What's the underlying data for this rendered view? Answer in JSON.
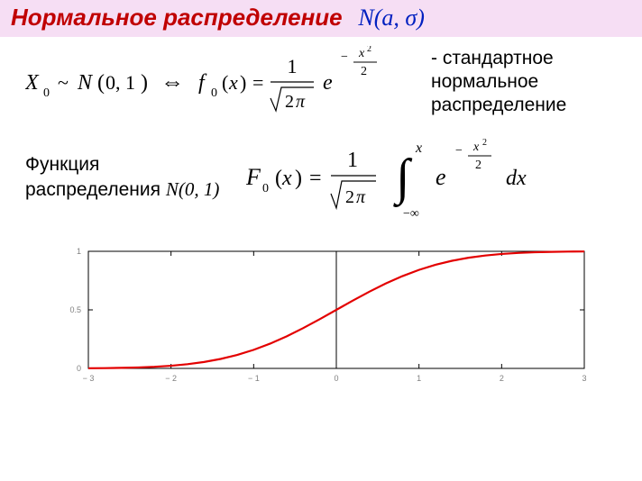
{
  "header": {
    "bg_color": "#f6def4",
    "title_color": "#c00000",
    "title": "Нормальное распределение",
    "n_label_color": "#0020c0",
    "n_label": "N(a, σ)"
  },
  "row1": {
    "annotation_l1": "- стандартное",
    "annotation_l2": "нормальное",
    "annotation_l3": "распределение"
  },
  "row2": {
    "label_l1": "Функция",
    "label_l2_a": "распределения ",
    "label_l2_b": "N(0, 1)"
  },
  "chart": {
    "type": "line",
    "xlim": [
      -3,
      3
    ],
    "ylim": [
      0,
      1
    ],
    "xticks": [
      -3,
      -2,
      -1,
      0,
      1,
      2,
      3
    ],
    "yticks": [
      0,
      0.5,
      1
    ],
    "xtick_labels": [
      "− 3",
      "− 2",
      "− 1",
      "0",
      "1",
      "2",
      "3"
    ],
    "ytick_labels": [
      "0",
      "0.5",
      "1"
    ],
    "curve_color": "#e30000",
    "curve_width": 2.2,
    "axis_color": "#000000",
    "tick_label_color": "#808080",
    "tick_fontsize": 9,
    "background_color": "#ffffff",
    "data": [
      {
        "x": -3.0,
        "y": 0.00135
      },
      {
        "x": -2.8,
        "y": 0.00256
      },
      {
        "x": -2.6,
        "y": 0.00466
      },
      {
        "x": -2.4,
        "y": 0.0082
      },
      {
        "x": -2.2,
        "y": 0.0139
      },
      {
        "x": -2.0,
        "y": 0.02275
      },
      {
        "x": -1.8,
        "y": 0.03593
      },
      {
        "x": -1.6,
        "y": 0.0548
      },
      {
        "x": -1.4,
        "y": 0.08076
      },
      {
        "x": -1.2,
        "y": 0.11507
      },
      {
        "x": -1.0,
        "y": 0.15866
      },
      {
        "x": -0.8,
        "y": 0.21186
      },
      {
        "x": -0.6,
        "y": 0.27425
      },
      {
        "x": -0.4,
        "y": 0.34458
      },
      {
        "x": -0.2,
        "y": 0.42074
      },
      {
        "x": 0.0,
        "y": 0.5
      },
      {
        "x": 0.2,
        "y": 0.57926
      },
      {
        "x": 0.4,
        "y": 0.65542
      },
      {
        "x": 0.6,
        "y": 0.72575
      },
      {
        "x": 0.8,
        "y": 0.78814
      },
      {
        "x": 1.0,
        "y": 0.84134
      },
      {
        "x": 1.2,
        "y": 0.88493
      },
      {
        "x": 1.4,
        "y": 0.91924
      },
      {
        "x": 1.6,
        "y": 0.9452
      },
      {
        "x": 1.8,
        "y": 0.96407
      },
      {
        "x": 2.0,
        "y": 0.97725
      },
      {
        "x": 2.2,
        "y": 0.9861
      },
      {
        "x": 2.4,
        "y": 0.9918
      },
      {
        "x": 2.6,
        "y": 0.99534
      },
      {
        "x": 2.8,
        "y": 0.99744
      },
      {
        "x": 3.0,
        "y": 0.99865
      }
    ]
  }
}
